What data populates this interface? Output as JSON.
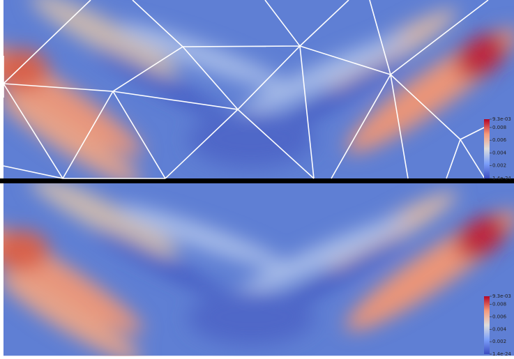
{
  "panels": [
    {
      "colorbar": {
        "range": [
          1.4e-24,
          0.0093
        ],
        "ticks": [
          {
            "value": 0.0093,
            "label": "9.3e-03"
          },
          0.008,
          0.006,
          0.004,
          0.002,
          1.4e-24
        ]
      }
    },
    {
      "colorbar": {
        "range": [
          1.4e-24,
          0.0093
        ],
        "ticks": [
          {
            "value": 0.0093,
            "label": "9.3e-03"
          },
          0.008,
          0.006,
          0.004,
          0.002,
          1.4e-24
        ]
      }
    }
  ]
}
